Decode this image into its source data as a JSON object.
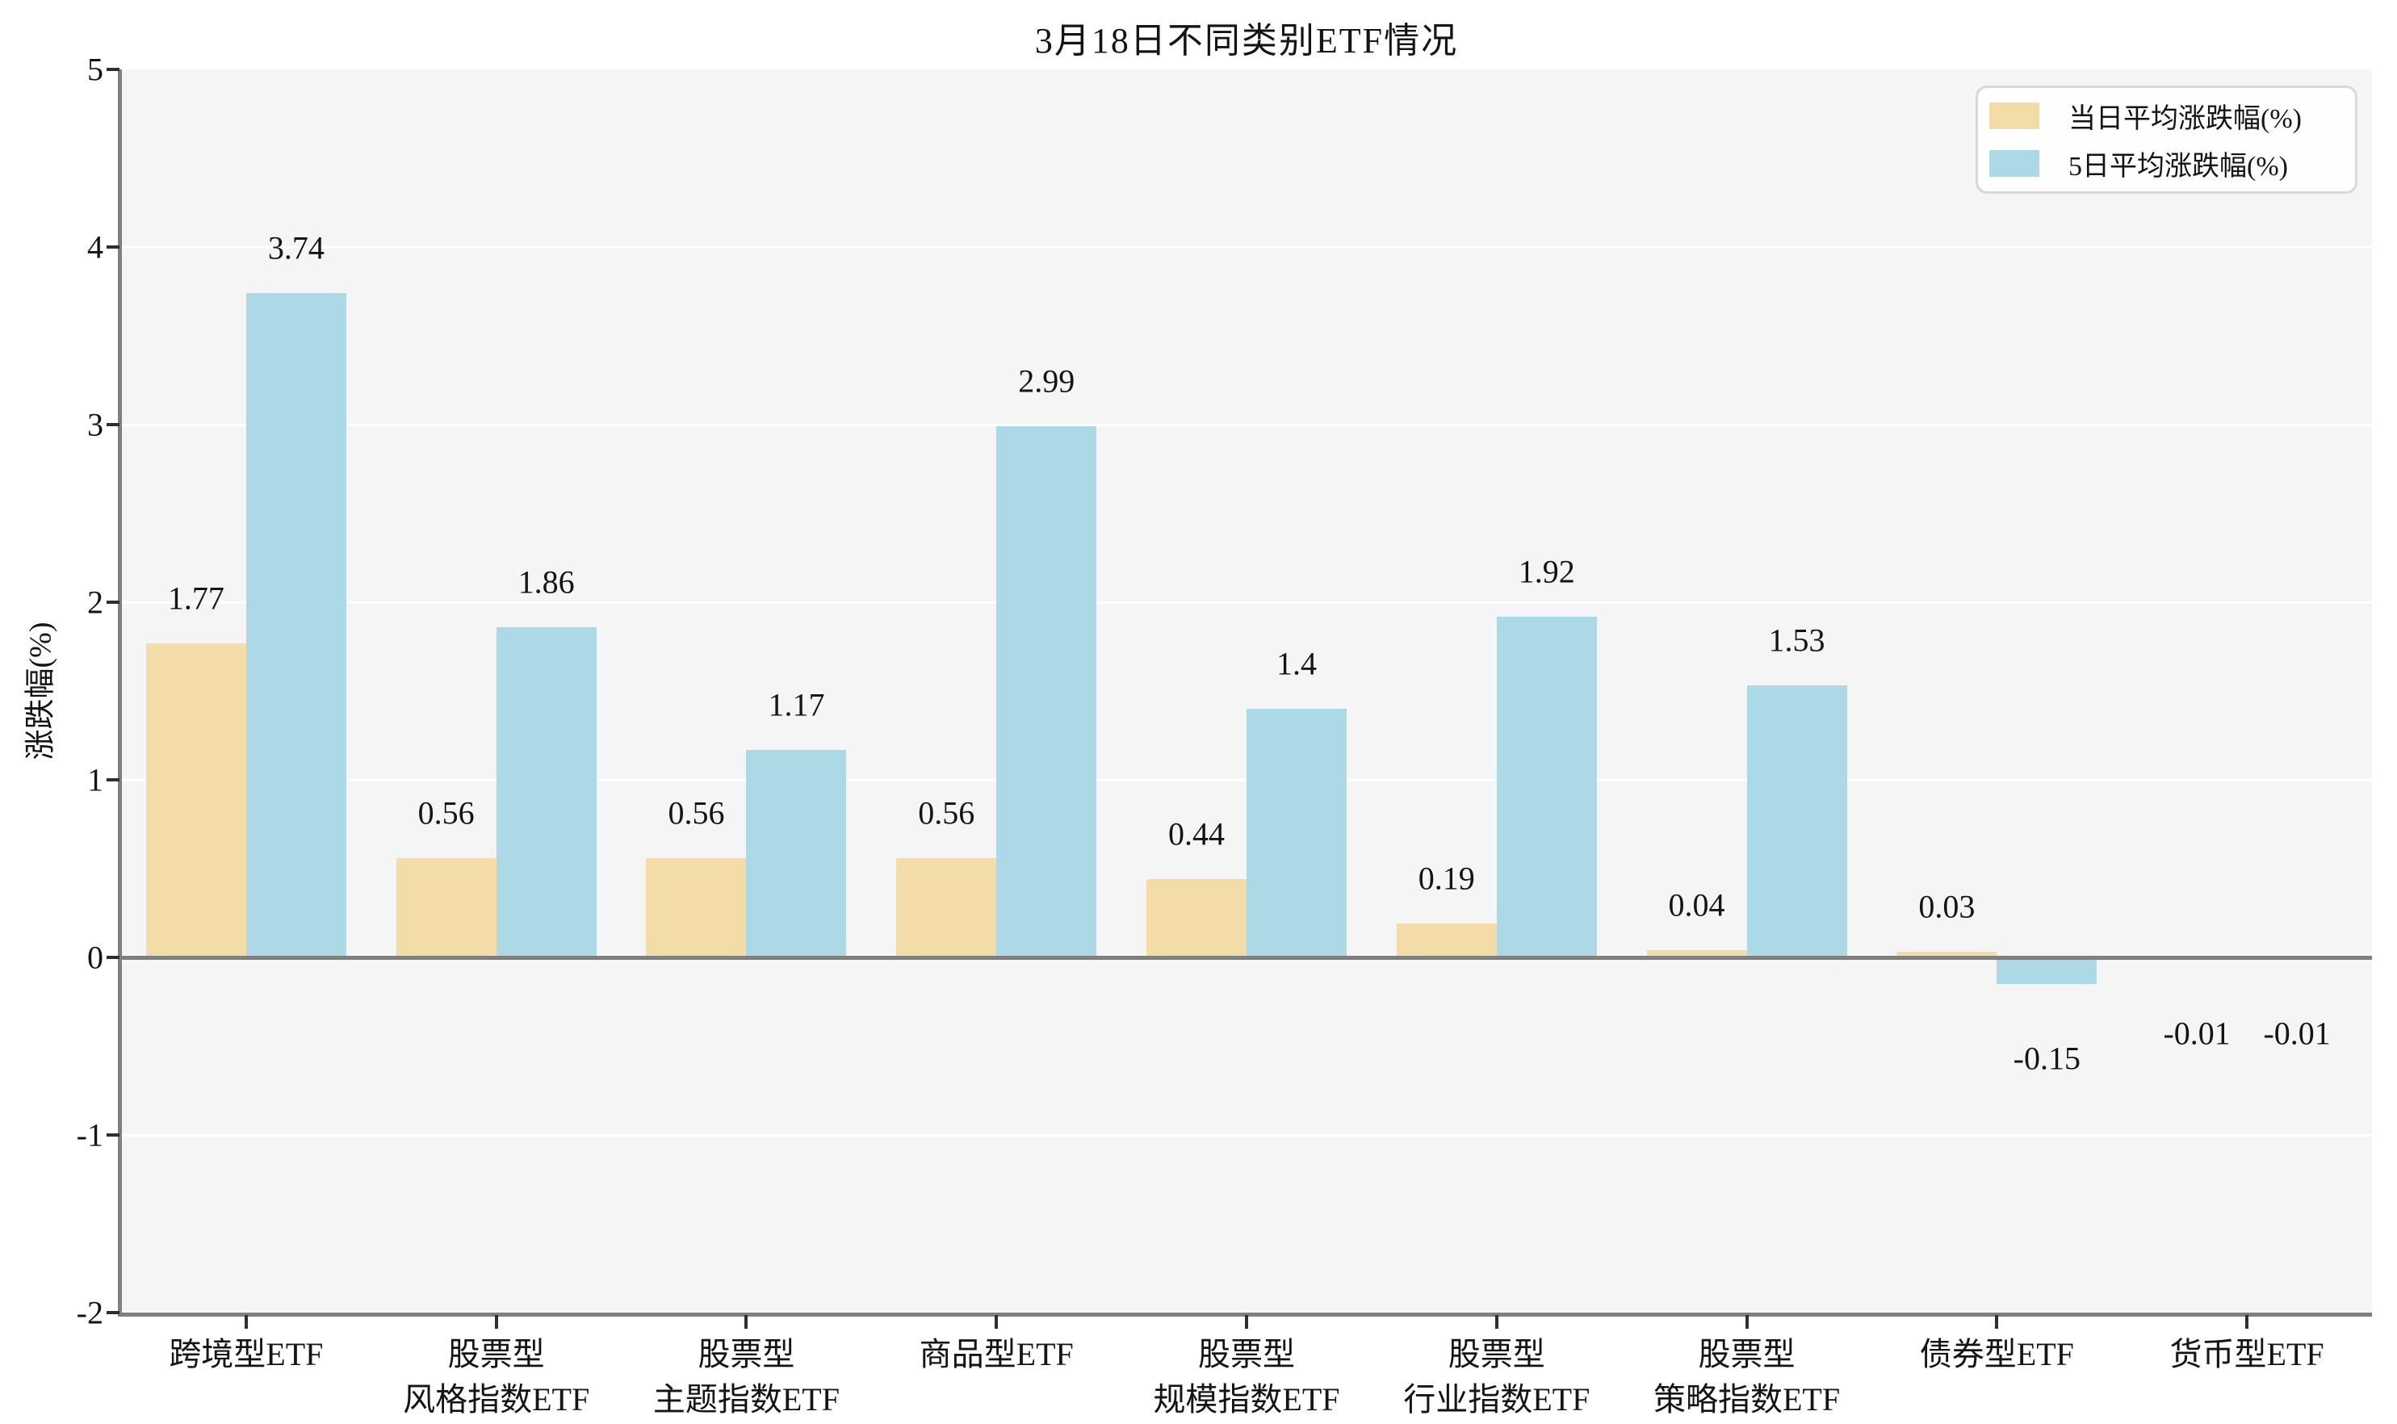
{
  "title": "3月18日不同类别ETF情况",
  "ylabel": "涨跌幅(%)",
  "colors": {
    "series_today": "#F4DCA9",
    "series_5day": "#ADD8E6",
    "plot_background": "#F5F5F5",
    "grid_line": "#FFFFFF",
    "axis_spine": "#7F7F7F",
    "text": "#141414"
  },
  "legend": {
    "position": "top-right",
    "entries": [
      {
        "label": "当日平均涨跌幅(%)",
        "color": "#F4DCA9"
      },
      {
        "label": "5日平均涨跌幅(%)",
        "color": "#ADD8E6"
      }
    ]
  },
  "chart_data": {
    "type": "bar",
    "title": "3月18日不同类别ETF情况",
    "xlabel": "",
    "ylabel": "涨跌幅(%)",
    "ylim": [
      -2,
      5
    ],
    "y_ticks": [
      5,
      4,
      3,
      2,
      1,
      0,
      -1,
      -2
    ],
    "grid": "horizontal",
    "legend_position": "top-right",
    "categories": [
      "跨境型ETF",
      "股票型\n风格指数ETF",
      "股票型\n主题指数ETF",
      "商品型ETF",
      "股票型\n规模指数ETF",
      "股票型\n行业指数ETF",
      "股票型\n策略指数ETF",
      "债券型ETF",
      "货币型ETF"
    ],
    "series": [
      {
        "name": "当日平均涨跌幅(%)",
        "color": "#F4DCA9",
        "values": [
          1.77,
          0.56,
          0.56,
          0.56,
          0.44,
          0.19,
          0.04,
          0.03,
          -0.01
        ]
      },
      {
        "name": "5日平均涨跌幅(%)",
        "color": "#ADD8E6",
        "values": [
          3.74,
          1.86,
          1.17,
          2.99,
          1.4,
          1.92,
          1.53,
          -0.15,
          -0.01
        ]
      }
    ]
  }
}
